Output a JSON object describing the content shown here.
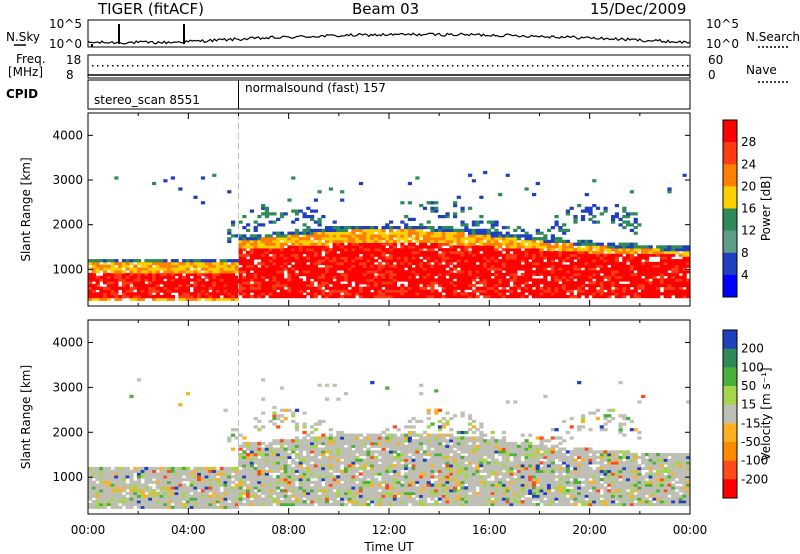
{
  "header": {
    "radar": "TIGER (fitACF)",
    "beam": "Beam 03",
    "date": "15/Dec/2009"
  },
  "top_panels": {
    "nsky_label": "N.Sky",
    "nsearch_label": "N.Search",
    "nsky_ticks": [
      "10^5",
      "10^0"
    ],
    "nsearch_ticks": [
      "10^5",
      "10^0"
    ],
    "freq_label_line1": "Freq.",
    "freq_label_line2": "[MHz]",
    "freq_ticks": [
      "18",
      "8"
    ],
    "nave_label": "Nave",
    "nave_ticks": [
      "60",
      "0"
    ],
    "cpid_label": "CPID",
    "cpid_segments": [
      {
        "text": "stereo_scan 8551"
      },
      {
        "text": "normalsound (fast) 157"
      }
    ]
  },
  "chart_data": [
    {
      "type": "heatmap",
      "title": "Power",
      "ylabel": "Slant Range [km]",
      "xlabel": "",
      "x_range_hours": [
        0,
        24
      ],
      "ylim": [
        180,
        4500
      ],
      "yticks": [
        1000,
        2000,
        3000,
        4000
      ],
      "colorbar_label": "Power [dB]",
      "colorbar_ticks": [
        "28",
        "24",
        "20",
        "16",
        "12",
        "8",
        "4"
      ],
      "colorbar_colors": [
        "#ff0000",
        "#ff3c14",
        "#ff7f00",
        "#ffd000",
        "#2e8b57",
        "#5e9c8a",
        "#1f3fbf",
        "#0000ff"
      ],
      "mode_change_hour": 6
    },
    {
      "type": "heatmap",
      "title": "Velocity",
      "ylabel": "Slant Range [km]",
      "xlabel": "Time UT",
      "x_range_hours": [
        0,
        24
      ],
      "ylim": [
        180,
        4500
      ],
      "yticks": [
        1000,
        2000,
        3000,
        4000
      ],
      "xticks": [
        "00:00",
        "04:00",
        "08:00",
        "12:00",
        "16:00",
        "20:00",
        "00:00"
      ],
      "colorbar_label": "Velocity [m s⁻¹]",
      "colorbar_ticks": [
        "200",
        "100",
        "50",
        "15",
        "-15",
        "-50",
        "-100",
        "-200"
      ],
      "colorbar_colors": [
        "#1f3fbf",
        "#2e8b57",
        "#4caf3a",
        "#a5d64a",
        "#bfbfb5",
        "#ffb020",
        "#ff8a00",
        "#ff4a1a",
        "#ff0000"
      ],
      "mode_change_hour": 6
    }
  ]
}
